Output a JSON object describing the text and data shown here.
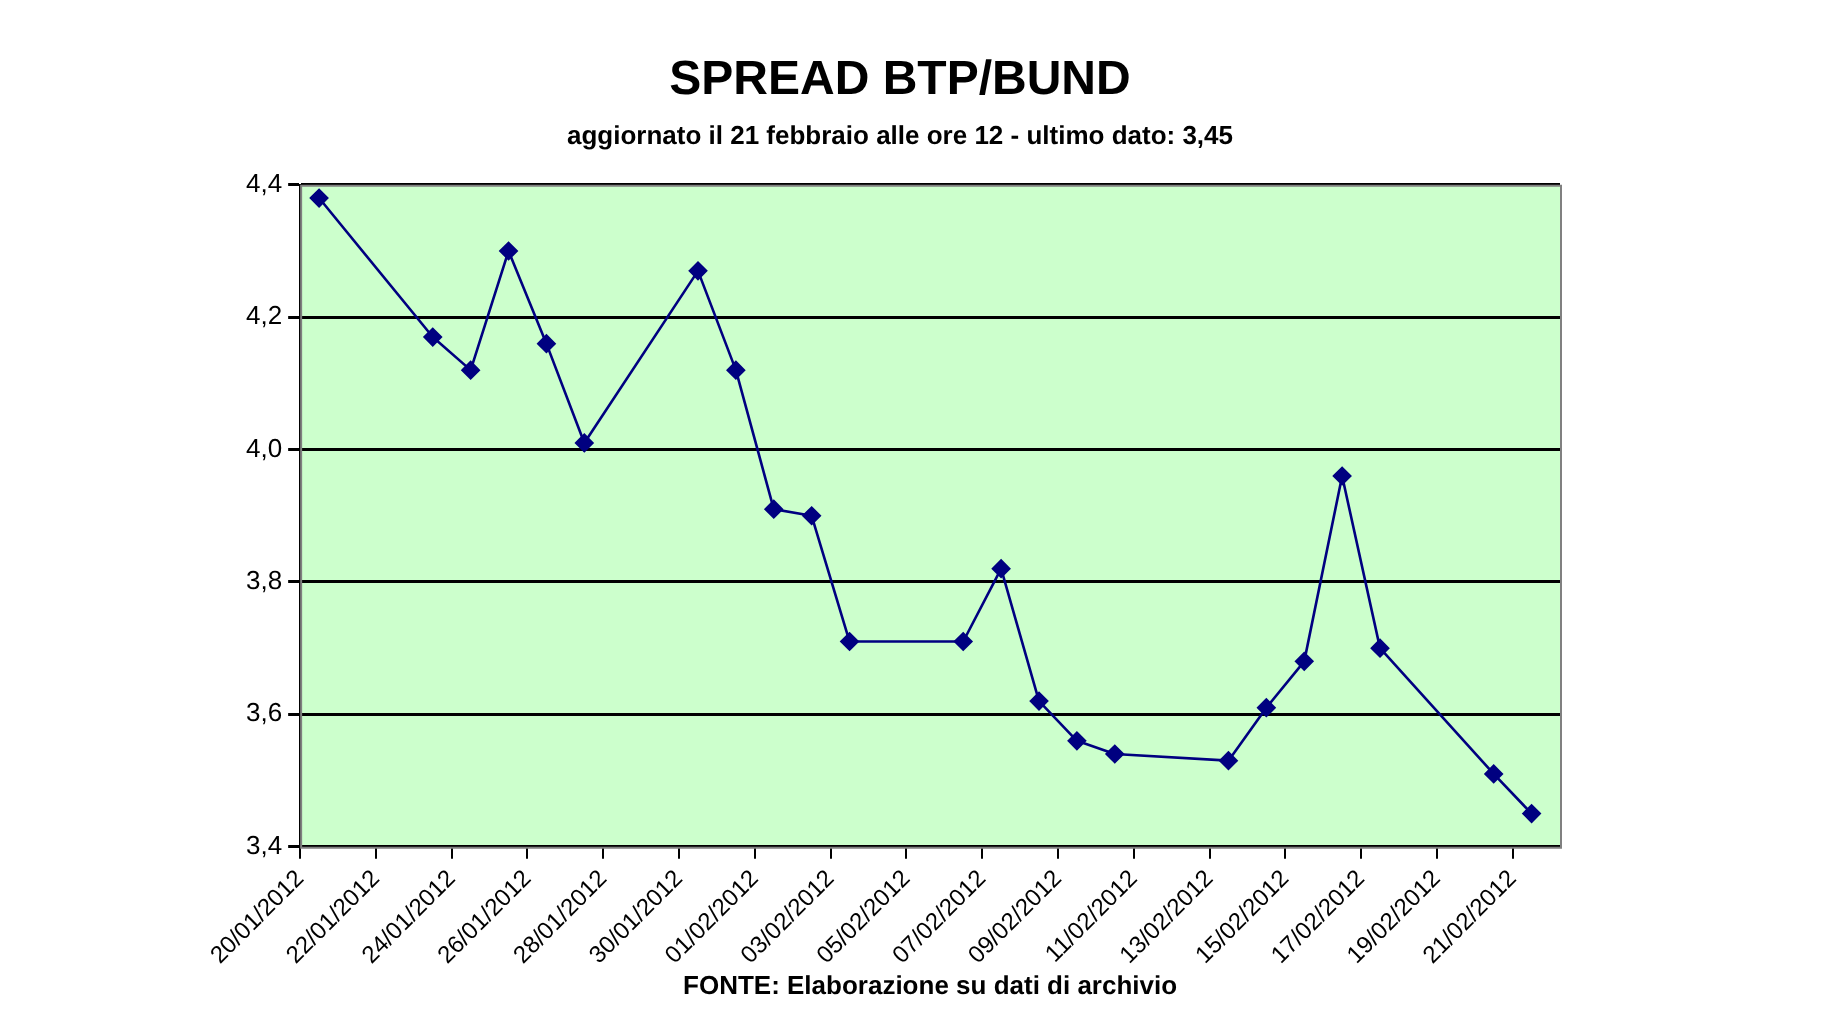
{
  "chart_data": {
    "type": "line",
    "title": "SPREAD BTP/BUND",
    "subtitle": "aggiornato il 21 febbraio alle ore 12 - ultimo dato: 3,45",
    "annotations": [
      "FONTE: Elaborazione su dati di archivio"
    ],
    "x": [
      "2012-01-20T12:00",
      "2012-01-23T12:00",
      "2012-01-24T12:00",
      "2012-01-25T12:00",
      "2012-01-26T12:00",
      "2012-01-27T12:00",
      "2012-01-30T12:00",
      "2012-01-31T12:00",
      "2012-02-01T12:00",
      "2012-02-02T12:00",
      "2012-02-03T12:00",
      "2012-02-06T12:00",
      "2012-02-07T12:00",
      "2012-02-08T12:00",
      "2012-02-09T12:00",
      "2012-02-10T12:00",
      "2012-02-13T12:00",
      "2012-02-14T12:00",
      "2012-02-15T12:00",
      "2012-02-16T12:00",
      "2012-02-17T12:00",
      "2012-02-20T12:00",
      "2012-02-21T12:00"
    ],
    "series": [
      {
        "color": "#000080",
        "values": [
          4.38,
          4.17,
          4.12,
          4.3,
          4.16,
          4.01,
          4.27,
          4.12,
          3.91,
          3.9,
          3.71,
          3.71,
          3.82,
          3.62,
          3.56,
          3.54,
          3.53,
          3.61,
          3.68,
          3.96,
          3.7,
          3.51,
          3.45
        ]
      }
    ],
    "xlim": [
      "2012-01-20",
      "2012-02-22T06:00"
    ],
    "xticks": [
      {
        "value": "2012-01-20",
        "label": "20/01/2012"
      },
      {
        "value": "2012-01-22",
        "label": "22/01/2012"
      },
      {
        "value": "2012-01-24",
        "label": "24/01/2012"
      },
      {
        "value": "2012-01-26",
        "label": "26/01/2012"
      },
      {
        "value": "2012-01-28",
        "label": "28/01/2012"
      },
      {
        "value": "2012-01-30",
        "label": "30/01/2012"
      },
      {
        "value": "2012-02-01",
        "label": "01/02/2012"
      },
      {
        "value": "2012-02-03",
        "label": "03/02/2012"
      },
      {
        "value": "2012-02-05",
        "label": "05/02/2012"
      },
      {
        "value": "2012-02-07",
        "label": "07/02/2012"
      },
      {
        "value": "2012-02-09",
        "label": "09/02/2012"
      },
      {
        "value": "2012-02-11",
        "label": "11/02/2012"
      },
      {
        "value": "2012-02-13",
        "label": "13/02/2012"
      },
      {
        "value": "2012-02-15",
        "label": "15/02/2012"
      },
      {
        "value": "2012-02-17",
        "label": "17/02/2012"
      },
      {
        "value": "2012-02-19",
        "label": "19/02/2012"
      },
      {
        "value": "2012-02-21",
        "label": "21/02/2012"
      }
    ],
    "ylim": [
      3.4,
      4.4
    ],
    "yticks": [
      {
        "value": 3.4,
        "label": "3,4"
      },
      {
        "value": 3.6,
        "label": "3,6"
      },
      {
        "value": 3.8,
        "label": "3,8"
      },
      {
        "value": 4.0,
        "label": "4,0"
      },
      {
        "value": 4.2,
        "label": "4,2"
      },
      {
        "value": 4.4,
        "label": "4,4"
      }
    ],
    "grid": "y",
    "legend": false,
    "marker": "diamond",
    "line_style": "solid"
  }
}
